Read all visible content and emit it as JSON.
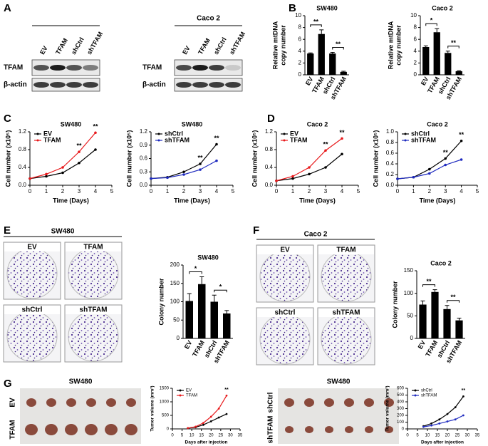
{
  "panel_letters": [
    "A",
    "B",
    "C",
    "D",
    "E",
    "F",
    "G"
  ],
  "blots": [
    {
      "lanes": [
        "EV",
        "TFAM",
        "shCtrl",
        "shTFAM"
      ],
      "rows": [
        "TFAM",
        "β-actin"
      ]
    },
    {
      "cell_line": "Caco 2",
      "lanes": [
        "EV",
        "TFAM",
        "shCtrl",
        "shTFAM"
      ],
      "rows": [
        "TFAM",
        "β-actin"
      ]
    }
  ],
  "photo_panels": [
    {
      "title": "SW480",
      "labels": [
        "EV",
        "TFAM",
        "shCtrl",
        "shTFAM"
      ]
    },
    {
      "title": "Caco 2",
      "labels": [
        "EV",
        "TFAM",
        "shCtrl",
        "shTFAM"
      ]
    }
  ],
  "tumor_panels": [
    {
      "title": "SW480",
      "rows": [
        "EV",
        "TFAM"
      ]
    },
    {
      "title": "SW480",
      "rows": [
        "shCtrl",
        "shTFAM"
      ]
    }
  ],
  "chart_data": [
    {
      "type": "bar",
      "title": "SW480",
      "ylabel": [
        "Relative mtDNA",
        "copy number"
      ],
      "categories": [
        "EV",
        "TFAM",
        "shCtrl",
        "shTFAM"
      ],
      "values": [
        3.6,
        6.9,
        3.6,
        0.5
      ],
      "errors": [
        0.1,
        0.7,
        0.2,
        0.1
      ],
      "color": "#000000",
      "ylim": [
        0,
        10
      ],
      "yticks": [
        0,
        2,
        4,
        6,
        8,
        10
      ],
      "annotations": [
        "**",
        "**"
      ]
    },
    {
      "type": "bar",
      "title": "Caco 2",
      "ylabel": [
        "Relative mtDNA",
        "copy number"
      ],
      "categories": [
        "EV",
        "TFAM",
        "shCtrl",
        "shTFAM"
      ],
      "values": [
        4.7,
        7.2,
        3.7,
        0.6
      ],
      "errors": [
        0.2,
        0.6,
        0.3,
        0.1
      ],
      "color": "#000000",
      "ylim": [
        0,
        10
      ],
      "yticks": [
        0,
        2,
        4,
        6,
        8,
        10
      ],
      "annotations": [
        "*",
        "**"
      ]
    },
    {
      "type": "line",
      "title": "SW480",
      "ylabel": "Cell number (x10⁵)",
      "xlabel": "Time (Days)",
      "x": [
        0,
        1,
        2,
        3,
        4
      ],
      "series": [
        {
          "name": "EV",
          "color": "#000000",
          "values": [
            0.15,
            0.2,
            0.28,
            0.5,
            0.8
          ]
        },
        {
          "name": "TFAM",
          "color": "#e8191b",
          "values": [
            0.15,
            0.25,
            0.4,
            0.75,
            1.18
          ]
        }
      ],
      "xlim": [
        0,
        5
      ],
      "xticks": [
        0,
        1,
        2,
        3,
        4,
        5
      ],
      "ylim": [
        0,
        1.2
      ],
      "yticks": [
        {
          "value": 0,
          "label": "0.0"
        },
        0.4,
        0.8,
        1.2
      ],
      "legend": "upper left",
      "annotations": [
        "**",
        "**"
      ]
    },
    {
      "type": "line",
      "title": "SW480",
      "ylabel": "Cell number (x10⁵)",
      "xlabel": "Time (Days)",
      "x": [
        0,
        1,
        2,
        3,
        4
      ],
      "series": [
        {
          "name": "shCtrl",
          "color": "#000000",
          "values": [
            0.15,
            0.18,
            0.3,
            0.48,
            0.92
          ]
        },
        {
          "name": "shTFAM",
          "color": "#1f2bbf",
          "values": [
            0.15,
            0.17,
            0.24,
            0.35,
            0.55
          ]
        }
      ],
      "xlim": [
        0,
        5
      ],
      "xticks": [
        0,
        1,
        2,
        3,
        4,
        5
      ],
      "ylim": [
        0,
        1.2
      ],
      "yticks": [
        {
          "value": 0,
          "label": "0.0"
        },
        0.3,
        0.6,
        0.9,
        1.2
      ],
      "legend": "upper left",
      "annotations": [
        "**",
        "**"
      ]
    },
    {
      "type": "line",
      "title": "Caco 2",
      "ylabel": "Cell number (x10⁵)",
      "xlabel": "Time (Days)",
      "x": [
        0,
        1,
        2,
        3,
        4
      ],
      "series": [
        {
          "name": "EV",
          "color": "#000000",
          "values": [
            0.1,
            0.15,
            0.25,
            0.4,
            0.7
          ]
        },
        {
          "name": "TFAM",
          "color": "#e8191b",
          "values": [
            0.1,
            0.2,
            0.4,
            0.78,
            1.05
          ]
        }
      ],
      "xlim": [
        0,
        5
      ],
      "xticks": [
        0,
        1,
        2,
        3,
        4,
        5
      ],
      "ylim": [
        0,
        1.2
      ],
      "yticks": [
        {
          "value": 0,
          "label": "0.0"
        },
        0.4,
        0.8,
        1.2
      ],
      "legend": "upper left",
      "annotations": [
        "**",
        "**"
      ]
    },
    {
      "type": "line",
      "title": "Caco 2",
      "ylabel": "Cell number (x10⁵)",
      "xlabel": "Time (Days)",
      "x": [
        0,
        1,
        2,
        3,
        4
      ],
      "series": [
        {
          "name": "shCtrl",
          "color": "#000000",
          "values": [
            0.12,
            0.15,
            0.3,
            0.5,
            0.83
          ]
        },
        {
          "name": "shTFAM",
          "color": "#1f2bbf",
          "values": [
            0.12,
            0.15,
            0.22,
            0.38,
            0.48
          ]
        }
      ],
      "xlim": [
        0,
        5
      ],
      "xticks": [
        0,
        1,
        2,
        3,
        4,
        5
      ],
      "ylim": [
        0,
        1
      ],
      "yticks": [
        {
          "value": 0,
          "label": "0.0"
        },
        0.2,
        0.4,
        0.6,
        0.8,
        {
          "value": 1,
          "label": "1.0"
        }
      ],
      "legend": "upper left",
      "annotations": [
        "**",
        "**"
      ]
    },
    {
      "type": "bar",
      "title": "SW480",
      "ylabel": "Colony number",
      "categories": [
        "EV",
        "TFAM",
        "shCtrl",
        "shTFAM"
      ],
      "values": [
        102,
        148,
        100,
        68
      ],
      "errors": [
        20,
        20,
        18,
        8
      ],
      "color": "#000000",
      "ylim": [
        0,
        200
      ],
      "yticks": [
        0,
        50,
        100,
        150,
        200
      ],
      "annotations": [
        "*",
        "*"
      ]
    },
    {
      "type": "bar",
      "title": "Caco 2",
      "ylabel": "Colony number",
      "categories": [
        "EV",
        "TFAM",
        "shCtrl",
        "shTFAM"
      ],
      "values": [
        75,
        103,
        65,
        40
      ],
      "errors": [
        8,
        5,
        8,
        5
      ],
      "color": "#000000",
      "ylim": [
        0,
        150
      ],
      "yticks": [
        0,
        50,
        100,
        150
      ],
      "annotations": [
        "**",
        "**"
      ]
    },
    {
      "type": "line",
      "ylabel": "Tumor volume (mm³)",
      "xlabel": "Days after injection",
      "x": [
        8,
        12,
        16,
        20,
        24,
        28
      ],
      "series": [
        {
          "name": "EV",
          "color": "#000000",
          "values": [
            30,
            60,
            150,
            280,
            420,
            550
          ]
        },
        {
          "name": "TFAM",
          "color": "#e8191b",
          "values": [
            30,
            80,
            220,
            450,
            750,
            1230
          ]
        }
      ],
      "xlim": [
        0,
        35
      ],
      "xticks": [
        0,
        5,
        10,
        15,
        20,
        25,
        30,
        35
      ],
      "ylim": [
        0,
        1500
      ],
      "yticks": [
        0,
        500,
        1000,
        1500
      ],
      "legend": "upper left",
      "annotations": [
        "**"
      ]
    },
    {
      "type": "line",
      "ylabel": "Tumor volume (mm³)",
      "xlabel": "Days after injection",
      "x": [
        8,
        12,
        16,
        20,
        24,
        28
      ],
      "series": [
        {
          "name": "shCtrl",
          "color": "#000000",
          "values": [
            40,
            80,
            140,
            220,
            320,
            480
          ]
        },
        {
          "name": "shTFAM",
          "color": "#1f2bbf",
          "values": [
            30,
            50,
            80,
            110,
            140,
            200
          ]
        }
      ],
      "xlim": [
        0,
        35
      ],
      "xticks": [
        0,
        5,
        10,
        15,
        20,
        25,
        30,
        35
      ],
      "ylim": [
        0,
        600
      ],
      "yticks": [
        0,
        100,
        200,
        300,
        400,
        500,
        600
      ],
      "legend": "upper left",
      "annotations": [
        "**"
      ]
    }
  ]
}
